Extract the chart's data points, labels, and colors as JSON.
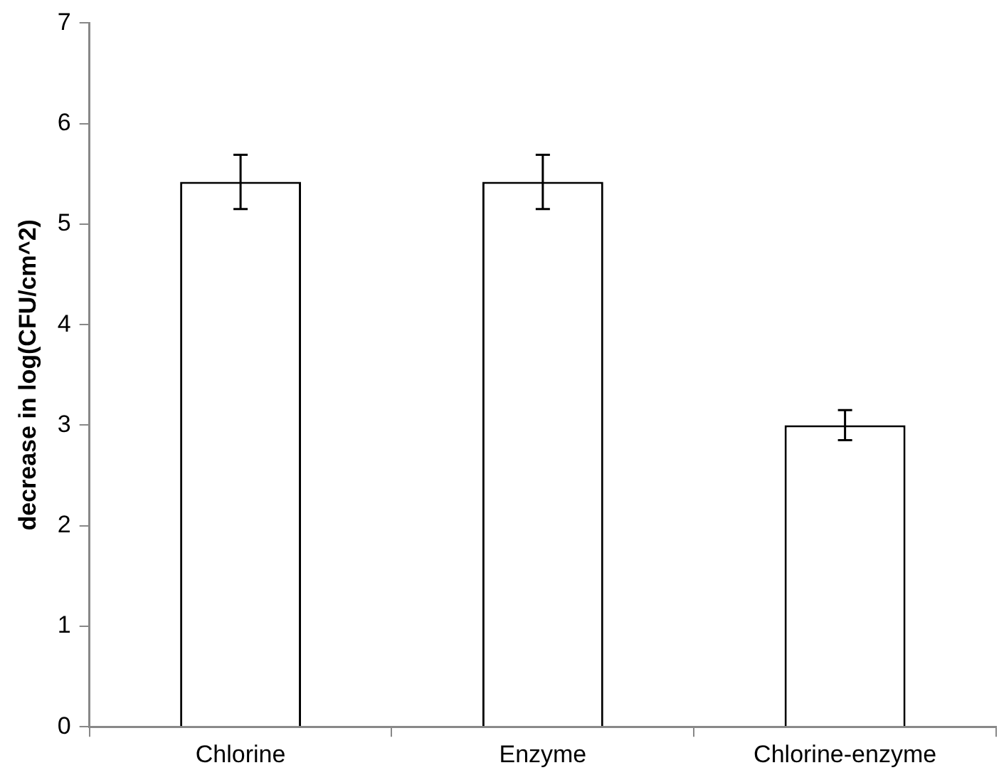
{
  "chart_data": {
    "type": "bar",
    "ylabel": "decrease in log(CFU/cm^2)",
    "categories": [
      "Chlorine",
      "Enzyme",
      "Chlorine-enzyme"
    ],
    "values": [
      5.42,
      5.42,
      3.0
    ],
    "errors": [
      0.27,
      0.27,
      0.15
    ],
    "color": "#ffffff",
    "ylim": [
      0,
      7
    ],
    "yticks": [
      0,
      1,
      2,
      3,
      4,
      5,
      6,
      7
    ],
    "grid": false,
    "legend": false
  }
}
